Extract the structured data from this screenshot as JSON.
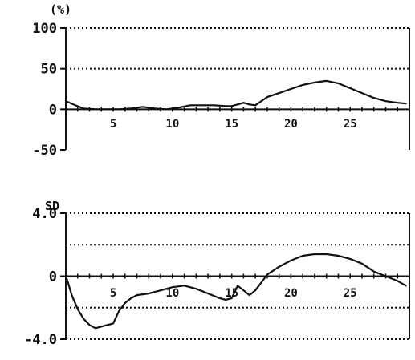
{
  "chart_data": [
    {
      "type": "line",
      "ylabel": "(%)",
      "xlim": [
        1,
        30
      ],
      "ylim": [
        -50,
        100
      ],
      "x_ticks": [
        5,
        10,
        15,
        20,
        25
      ],
      "x_tick_labels": [
        "5",
        "10",
        "15",
        "20",
        "25"
      ],
      "y_ticks": [
        100,
        50,
        0,
        -50
      ],
      "y_tick_labels": [
        "100",
        "50",
        "0",
        "-50"
      ],
      "grid": "dotted horizontal lines at 100 and 50",
      "series": [
        {
          "x": [
            1,
            1.8,
            2.5,
            3.5,
            4.5,
            5.5,
            6.5,
            7.5,
            8.5,
            9.5,
            10.5,
            11.5,
            12.5,
            13.5,
            14.5,
            15,
            15.5,
            16,
            16.5,
            17,
            18,
            19,
            20,
            21,
            22,
            23,
            24,
            25,
            26,
            27,
            28,
            29,
            29.7
          ],
          "y": [
            10,
            5,
            1,
            0,
            0,
            0,
            1,
            3,
            1,
            0,
            2,
            5,
            5,
            5,
            4,
            4,
            6,
            8,
            6,
            5,
            15,
            20,
            25,
            30,
            33,
            35,
            32,
            26,
            20,
            14,
            10,
            8,
            7
          ]
        }
      ]
    },
    {
      "type": "line",
      "ylabel": "SD",
      "xlim": [
        1,
        30
      ],
      "ylim": [
        -4,
        4
      ],
      "x_ticks": [
        5,
        10,
        15,
        20,
        25
      ],
      "x_tick_labels": [
        "5",
        "10",
        "15",
        "20",
        "25"
      ],
      "y_ticks": [
        4,
        0,
        -4
      ],
      "y_tick_labels": [
        "4.0",
        "0",
        "-4.0"
      ],
      "grid": "dotted horizontal lines at 4, 2, 0, -2, -4",
      "series": [
        {
          "x": [
            1.1,
            1.5,
            2,
            2.5,
            3,
            3.5,
            4,
            4.5,
            5,
            5.5,
            6,
            6.5,
            7,
            8,
            9,
            10,
            11,
            12,
            13,
            14,
            14.5,
            15,
            15.5,
            16,
            16.5,
            17,
            17.5,
            18,
            19,
            20,
            21,
            22,
            23,
            24,
            25,
            26,
            27,
            28,
            29,
            29.7
          ],
          "y": [
            -0.2,
            -1.2,
            -2.1,
            -2.7,
            -3.1,
            -3.3,
            -3.2,
            -3.1,
            -3.0,
            -2.2,
            -1.7,
            -1.4,
            -1.2,
            -1.1,
            -0.9,
            -0.7,
            -0.6,
            -0.8,
            -1.1,
            -1.4,
            -1.5,
            -1.4,
            -0.6,
            -0.9,
            -1.2,
            -0.9,
            -0.4,
            0.1,
            0.6,
            1.0,
            1.3,
            1.4,
            1.4,
            1.3,
            1.1,
            0.8,
            0.3,
            0.0,
            -0.3,
            -0.6
          ]
        }
      ]
    }
  ]
}
